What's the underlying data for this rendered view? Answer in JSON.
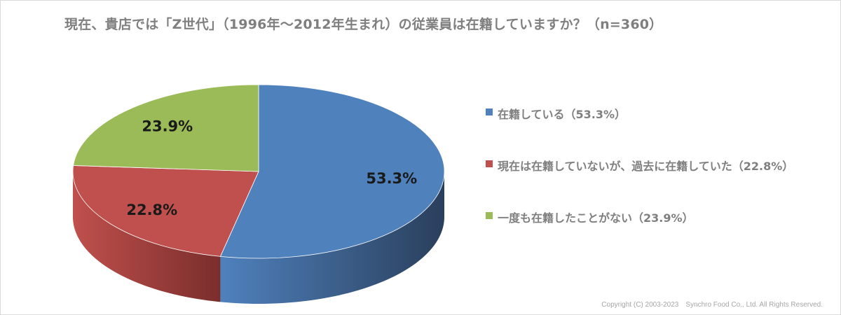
{
  "title": "現在、貴店では「Z世代」（1996年～2012年生まれ）の従業員は在籍していますか？（n=360）",
  "copyright": "Copyright (C) 2003-2023　Synchro Food Co., Ltd. All Rights Reserved.",
  "chart_data": {
    "type": "pie",
    "title": "現在、貴店では「Z世代」（1996年～2012年生まれ）の従業員は在籍していますか？（n=360）",
    "n": 360,
    "legend_position": "right",
    "slices": [
      {
        "label": "在籍している（53.3%）",
        "value": 53.3,
        "data_label": "53.3%",
        "color": "#4f81bd",
        "side_color": "#2a3f5c"
      },
      {
        "label": "現在は在籍していないが、過去に在籍していた（22.8%）",
        "value": 22.8,
        "data_label": "22.8%",
        "color": "#c0504d",
        "side_color": "#7a2e2c"
      },
      {
        "label": "一度も在籍したことがない（23.9%）",
        "value": 23.9,
        "data_label": "23.9%",
        "color": "#9bbb59",
        "side_color": "#5e7a2e"
      }
    ]
  }
}
